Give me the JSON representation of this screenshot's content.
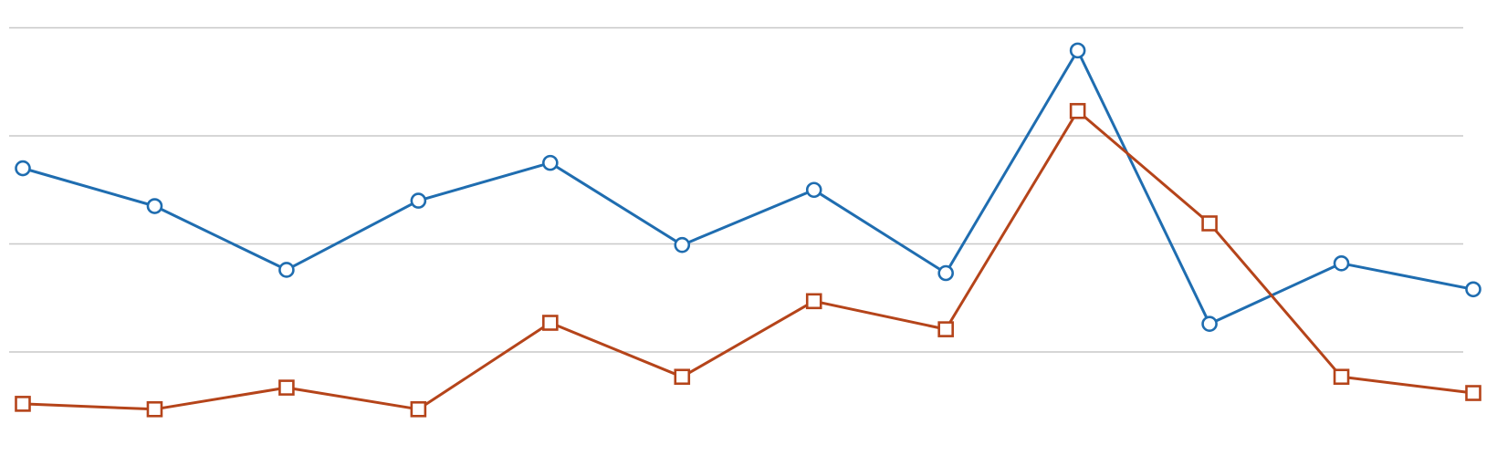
{
  "chart_data": {
    "type": "line",
    "title": "",
    "xlabel": "",
    "ylabel": "",
    "x": [
      1,
      2,
      3,
      4,
      5,
      6,
      7,
      8,
      9,
      10,
      11,
      12
    ],
    "ylim": [
      0,
      4
    ],
    "gridlines_y": [
      1,
      2,
      3,
      4
    ],
    "grid": true,
    "legend": "none",
    "series": [
      {
        "color": "#1f6db0",
        "marker": "circle",
        "values": [
          2.7,
          2.35,
          1.76,
          2.4,
          2.75,
          1.99,
          2.5,
          1.73,
          3.79,
          1.26,
          1.82,
          1.58
        ]
      },
      {
        "color": "#b5441a",
        "marker": "square",
        "values": [
          0.52,
          0.47,
          0.67,
          0.47,
          1.27,
          0.77,
          1.47,
          1.21,
          3.23,
          2.19,
          0.77,
          0.62
        ]
      }
    ]
  }
}
